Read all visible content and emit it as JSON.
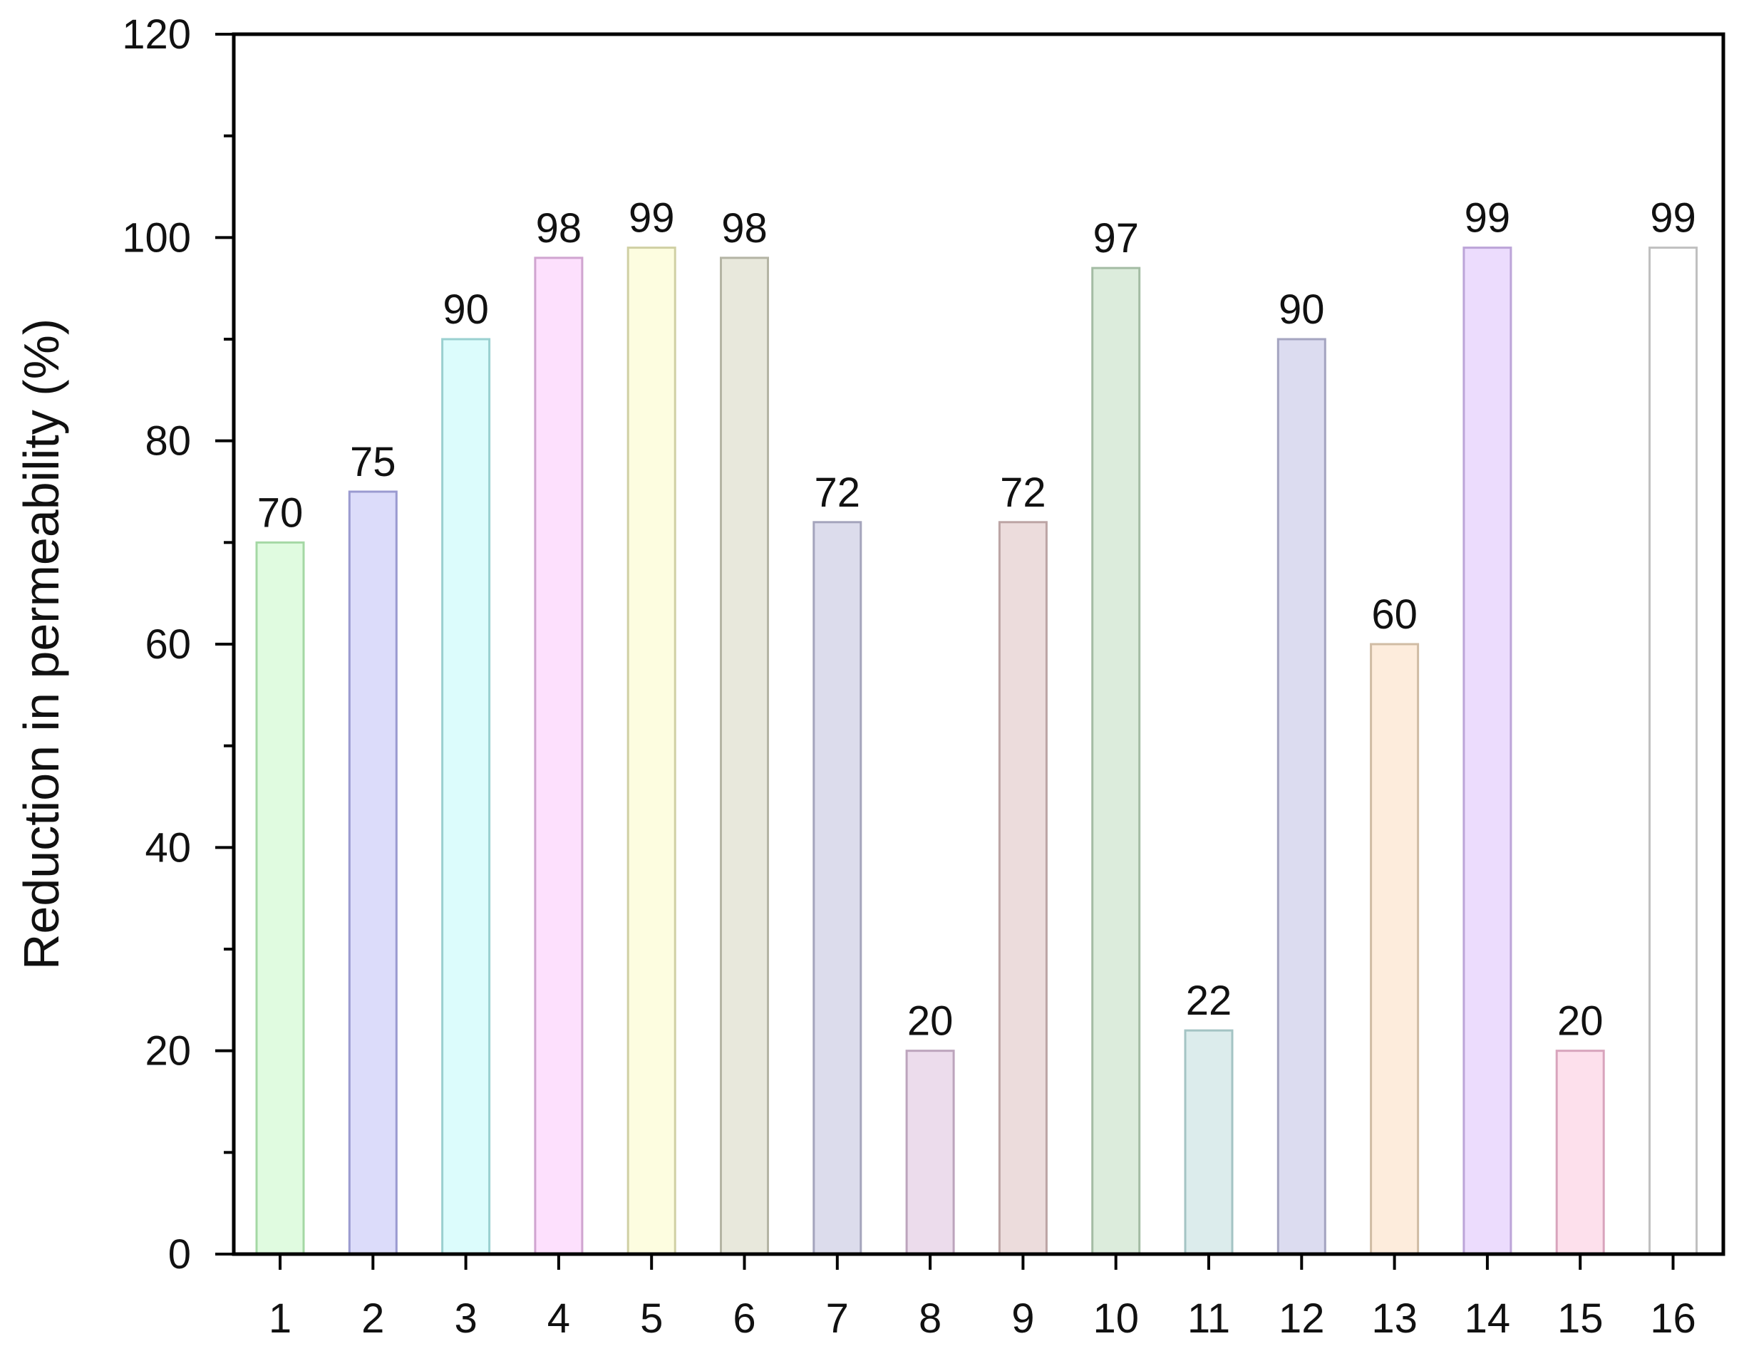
{
  "chart_data": {
    "type": "bar",
    "title": "",
    "xlabel": "",
    "ylabel": "Reduction in permeability (%)",
    "ylim": [
      0,
      120
    ],
    "y_ticks": [
      "0",
      "20",
      "40",
      "60",
      "80",
      "100",
      "120"
    ],
    "grid": false,
    "legend": "none",
    "categories": [
      "1",
      "2",
      "3",
      "4",
      "5",
      "6",
      "7",
      "8",
      "9",
      "10",
      "11",
      "12",
      "13",
      "14",
      "15",
      "16"
    ],
    "values": [
      70,
      75,
      90,
      98,
      99,
      98,
      72,
      20,
      72,
      97,
      22,
      90,
      60,
      99,
      20,
      99
    ],
    "data_labels": [
      "70",
      "75",
      "90",
      "98",
      "99",
      "98",
      "72",
      "20",
      "72",
      "97",
      "22",
      "90",
      "60",
      "99",
      "20",
      "99"
    ],
    "bar_colors": [
      "#e0fbe0",
      "#dcdcfa",
      "#dcfcfc",
      "#fde0fd",
      "#fdfde0",
      "#e8e8dc",
      "#dcdcec",
      "#ecdcec",
      "#ecdcdc",
      "#dcecdc",
      "#dcecec",
      "#dcdcf0",
      "#fdecdc",
      "#ecdcfd",
      "#fde0ec",
      "#ffffff"
    ],
    "bar_edge_colors": [
      "#a4d8a4",
      "#9a9ad0",
      "#9ad0d0",
      "#d0a4d0",
      "#d0d0a4",
      "#b4b4a4",
      "#a4a4bc",
      "#bca4bc",
      "#bca4a4",
      "#a4bca4",
      "#a4c4c4",
      "#a4a4c0",
      "#d0bca4",
      "#bca4d8",
      "#d8a4bc",
      "#c0c0c0"
    ]
  }
}
